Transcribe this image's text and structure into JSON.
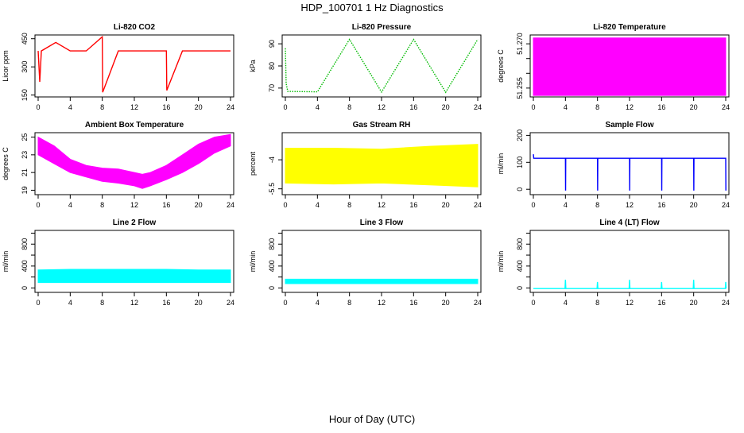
{
  "figure": {
    "title": "HDP_100701  1 Hz Diagnostics",
    "xlabel": "Hour of Day (UTC)"
  },
  "chart_data": [
    {
      "type": "line",
      "title": "Li-820 CO2",
      "ylabel": "Licor ppm",
      "xlim": [
        0,
        24
      ],
      "xticks": [
        0,
        4,
        8,
        12,
        16,
        20,
        24
      ],
      "ylim": [
        140,
        470
      ],
      "yticks": [
        150,
        300,
        450
      ],
      "color": "#ff0000",
      "style": "lines",
      "series": [
        {
          "x": [
            0,
            0.2,
            0.4,
            2.2,
            4,
            6,
            8,
            8.05,
            10,
            12,
            14,
            16,
            16.05,
            18,
            20,
            22,
            24
          ],
          "y": [
            385,
            220,
            385,
            430,
            385,
            385,
            460,
            165,
            385,
            385,
            385,
            385,
            175,
            385,
            385,
            385,
            385
          ]
        }
      ]
    },
    {
      "type": "line",
      "title": "Li-820 Pressure",
      "ylabel": "kPa",
      "xlim": [
        0,
        24
      ],
      "xticks": [
        0,
        4,
        8,
        12,
        16,
        20,
        24
      ],
      "ylim": [
        66,
        94
      ],
      "yticks": [
        70,
        80,
        90
      ],
      "color": "#00bb00",
      "style": "points",
      "series": [
        {
          "x": [
            0,
            0.1,
            0.3,
            4,
            8,
            12,
            16,
            20,
            24
          ],
          "y": [
            88,
            72,
            68.5,
            68.3,
            92,
            68.2,
            92,
            68.1,
            92
          ]
        }
      ]
    },
    {
      "type": "area",
      "title": "Li-820 Temperature",
      "ylabel": "degrees C",
      "xlim": [
        0,
        24
      ],
      "xticks": [
        0,
        4,
        8,
        12,
        16,
        20,
        24
      ],
      "ylim": [
        51.252,
        51.273
      ],
      "yticks": [
        51.255,
        51.26,
        51.265,
        51.27
      ],
      "ytick_labels": [
        "51.255",
        "",
        "",
        "51.270"
      ],
      "color": "#ff00ff",
      "style": "band",
      "series": [
        {
          "x": [
            0,
            24
          ],
          "lower": [
            51.2525,
            51.2525
          ],
          "upper": [
            51.272,
            51.272
          ]
        }
      ]
    },
    {
      "type": "area",
      "title": "Ambient Box Temperature",
      "ylabel": "degrees C",
      "xlim": [
        0,
        24
      ],
      "xticks": [
        0,
        4,
        8,
        12,
        16,
        20,
        24
      ],
      "ylim": [
        18.5,
        25.5
      ],
      "yticks": [
        19,
        21,
        23,
        25
      ],
      "color": "#ff00ff",
      "style": "band",
      "series": [
        {
          "x": [
            0,
            2,
            4,
            6,
            8,
            10,
            12,
            13,
            14,
            16,
            18,
            20,
            22,
            24
          ],
          "lower": [
            23.0,
            22.0,
            21.0,
            20.5,
            20.0,
            19.8,
            19.5,
            19.2,
            19.5,
            20.2,
            21.0,
            22.0,
            23.2,
            24.0
          ],
          "upper": [
            25.0,
            24.0,
            22.5,
            21.8,
            21.5,
            21.4,
            21.0,
            20.8,
            21.0,
            21.8,
            23.0,
            24.2,
            25.0,
            25.3
          ]
        }
      ]
    },
    {
      "type": "area",
      "title": "Gas Stream RH",
      "ylabel": "percent",
      "xlim": [
        0,
        24
      ],
      "xticks": [
        0,
        4,
        8,
        12,
        16,
        20,
        24
      ],
      "ylim": [
        -5.8,
        -2.6
      ],
      "yticks": [
        -5.5,
        -4.0
      ],
      "color": "#ffff00",
      "style": "band",
      "series": [
        {
          "x": [
            0,
            6,
            12,
            18,
            24
          ],
          "lower": [
            -5.2,
            -5.25,
            -5.2,
            -5.3,
            -5.4
          ],
          "upper": [
            -3.4,
            -3.4,
            -3.45,
            -3.3,
            -3.2
          ]
        }
      ]
    },
    {
      "type": "line",
      "title": "Sample Flow",
      "ylabel": "ml/min",
      "xlim": [
        0,
        24
      ],
      "xticks": [
        0,
        4,
        8,
        12,
        16,
        20,
        24
      ],
      "ylim": [
        -20,
        210
      ],
      "yticks": [
        0,
        100,
        200
      ],
      "color": "#0000ff",
      "style": "lines",
      "series": [
        {
          "x": [
            0,
            0.05,
            4,
            4.02,
            4.04,
            8,
            8.02,
            8.04,
            12,
            12.02,
            12.04,
            16,
            16.02,
            16.04,
            20,
            20.02,
            20.04,
            24,
            24.02
          ],
          "y": [
            130,
            115,
            115,
            -5,
            115,
            115,
            -5,
            115,
            115,
            -5,
            115,
            115,
            -5,
            115,
            115,
            -5,
            115,
            115,
            -5
          ]
        }
      ]
    },
    {
      "type": "area",
      "title": "Line 2 Flow",
      "ylabel": "ml/min",
      "xlim": [
        0,
        24
      ],
      "xticks": [
        0,
        4,
        8,
        12,
        16,
        20,
        24
      ],
      "ylim": [
        -80,
        1050
      ],
      "yticks": [
        0,
        200,
        400,
        600,
        800,
        1000
      ],
      "ytick_labels": [
        "0",
        "",
        "400",
        "",
        "800",
        ""
      ],
      "color": "#00ffff",
      "style": "band",
      "series": [
        {
          "x": [
            0,
            4,
            8,
            12,
            16,
            20,
            24
          ],
          "lower": [
            100,
            100,
            100,
            100,
            100,
            100,
            100
          ],
          "upper": [
            330,
            340,
            340,
            340,
            340,
            330,
            330
          ]
        }
      ]
    },
    {
      "type": "area",
      "title": "Line 3 Flow",
      "ylabel": "ml/min",
      "xlim": [
        0,
        24
      ],
      "xticks": [
        0,
        4,
        8,
        12,
        16,
        20,
        24
      ],
      "ylim": [
        -80,
        1050
      ],
      "yticks": [
        0,
        200,
        400,
        600,
        800,
        1000
      ],
      "ytick_labels": [
        "0",
        "",
        "400",
        "",
        "800",
        ""
      ],
      "color": "#00ffff",
      "style": "band",
      "series": [
        {
          "x": [
            0,
            24
          ],
          "lower": [
            80,
            80
          ],
          "upper": [
            160,
            160
          ]
        }
      ]
    },
    {
      "type": "line",
      "title": "Line 4 (LT) Flow",
      "ylabel": "ml/min",
      "xlim": [
        0,
        24
      ],
      "xticks": [
        0,
        4,
        8,
        12,
        16,
        20,
        24
      ],
      "ylim": [
        -80,
        1050
      ],
      "yticks": [
        0,
        200,
        400,
        600,
        800,
        1000
      ],
      "ytick_labels": [
        "0",
        "",
        "400",
        "",
        "800",
        ""
      ],
      "color": "#00ffff",
      "style": "lines",
      "series": [
        {
          "x": [
            0,
            3.95,
            4,
            4.05,
            7.95,
            8,
            8.05,
            11.95,
            12,
            12.05,
            15.95,
            16,
            16.05,
            19.95,
            20,
            20.05,
            23.95,
            24,
            24.05
          ],
          "y": [
            -10,
            -10,
            150,
            -10,
            -10,
            110,
            -10,
            -10,
            150,
            -10,
            -10,
            110,
            -10,
            -10,
            150,
            -10,
            -10,
            110,
            -10
          ]
        }
      ]
    }
  ]
}
